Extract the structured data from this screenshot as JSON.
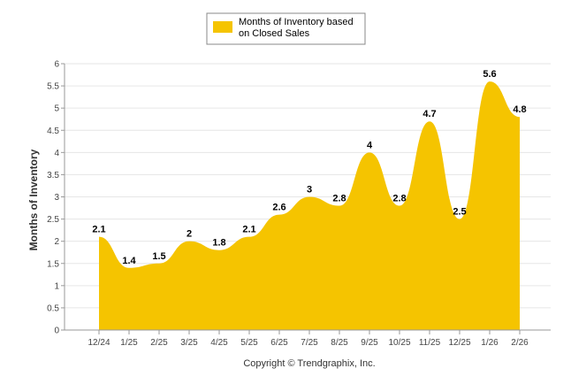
{
  "chart_data": {
    "type": "area",
    "series": [
      {
        "name": "Months of Inventory based on Closed Sales",
        "values": [
          2.1,
          1.4,
          1.5,
          2,
          1.8,
          2.1,
          2.6,
          3,
          2.8,
          4,
          2.8,
          4.7,
          2.5,
          5.6,
          4.8
        ],
        "labels": [
          "2.1",
          "1.4",
          "1.5",
          "2",
          "1.8",
          "2.1",
          "2.6",
          "3",
          "2.8",
          "4",
          "2.8",
          "4.7",
          "2.5",
          "5.6",
          "4.8"
        ]
      }
    ],
    "categories": [
      "12/24",
      "1/25",
      "2/25",
      "3/25",
      "4/25",
      "5/25",
      "6/25",
      "7/25",
      "8/25",
      "9/25",
      "10/25",
      "11/25",
      "12/25",
      "1/26",
      "2/26"
    ],
    "title": "",
    "xlabel": "",
    "ylabel": "Months of Inventory",
    "ylim": [
      0,
      6
    ],
    "yticks": [
      "0",
      "0.5",
      "1",
      "1.5",
      "2",
      "2.5",
      "3",
      "3.5",
      "4",
      "4.5",
      "5",
      "5.5",
      "6"
    ],
    "grid": true,
    "legend": {
      "position": "top-center",
      "line1": "Months of Inventory based",
      "line2": "on Closed Sales"
    },
    "colors": {
      "area": "#F5C400",
      "grid": "#e6e6e6",
      "axis": "#999999",
      "legend_border": "#888888"
    }
  },
  "footer": {
    "copyright": "Copyright © Trendgraphix, Inc."
  }
}
